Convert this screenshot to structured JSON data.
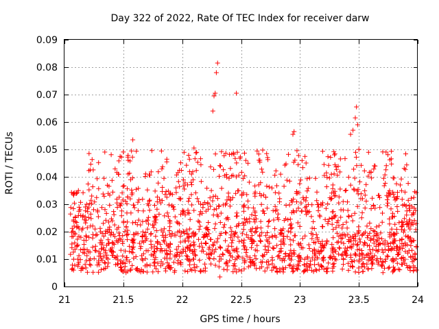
{
  "chart_data": {
    "type": "scatter",
    "title": "Day 322 of 2022, Rate Of TEC Index for receiver darw",
    "xlabel": "GPS time / hours",
    "ylabel": "ROTI / TECUs",
    "xlim": [
      21,
      24
    ],
    "ylim": [
      0,
      0.09
    ],
    "xticks": [
      21,
      21.5,
      22,
      22.5,
      23,
      23.5,
      24
    ],
    "xtick_labels": [
      "21",
      "21.5",
      "22",
      "22.5",
      "23",
      "23.5",
      "24"
    ],
    "yticks": [
      0,
      0.01,
      0.02,
      0.03,
      0.04,
      0.05,
      0.06,
      0.07,
      0.08,
      0.09
    ],
    "ytick_labels": [
      "0",
      "0.01",
      "0.02",
      "0.03",
      "0.04",
      "0.05",
      "0.06",
      "0.07",
      "0.08",
      "0.09"
    ],
    "grid": true,
    "marker": "+",
    "color": "#ff0000",
    "notable_points": [
      {
        "x": 21.58,
        "y": 0.0535
      },
      {
        "x": 22.1,
        "y": 0.0505
      },
      {
        "x": 22.26,
        "y": 0.064
      },
      {
        "x": 22.27,
        "y": 0.0695
      },
      {
        "x": 22.28,
        "y": 0.0705
      },
      {
        "x": 22.29,
        "y": 0.078
      },
      {
        "x": 22.3,
        "y": 0.0815
      },
      {
        "x": 22.46,
        "y": 0.0705
      },
      {
        "x": 22.94,
        "y": 0.0555
      },
      {
        "x": 22.95,
        "y": 0.0565
      },
      {
        "x": 23.43,
        "y": 0.0555
      },
      {
        "x": 23.45,
        "y": 0.057
      },
      {
        "x": 23.47,
        "y": 0.0615
      },
      {
        "x": 23.48,
        "y": 0.0655
      },
      {
        "x": 23.49,
        "y": 0.059
      },
      {
        "x": 23.5,
        "y": 0.05
      },
      {
        "x": 23.99,
        "y": 0.006
      },
      {
        "x": 22.32,
        "y": 0.0035
      }
    ],
    "bulk_distribution": {
      "base_range": [
        0.005,
        0.02
      ],
      "mid_range": [
        0.02,
        0.035
      ],
      "upper_range": [
        0.035,
        0.05
      ],
      "point_count_estimate": 1800
    }
  }
}
